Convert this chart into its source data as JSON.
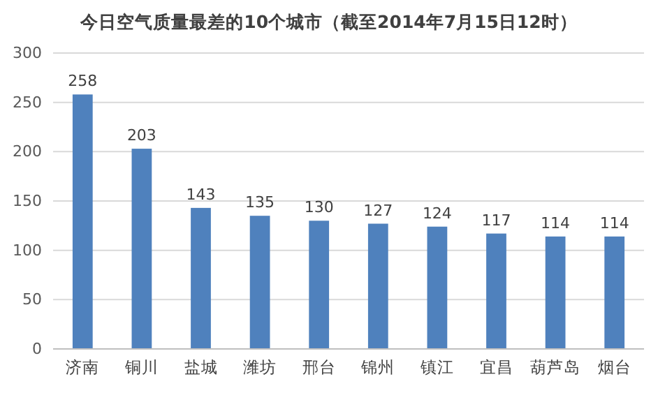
{
  "chart_data": {
    "type": "bar",
    "title": "今日空气质量最差的10个城市（截至2014年7月15日12时）",
    "categories": [
      "济南",
      "铜川",
      "盐城",
      "潍坊",
      "邢台",
      "锦州",
      "镇江",
      "宜昌",
      "葫芦岛",
      "烟台"
    ],
    "values": [
      258,
      203,
      143,
      135,
      130,
      127,
      124,
      117,
      114,
      114
    ],
    "color": "#4f81bd",
    "ylim": [
      0,
      300
    ],
    "yticks": [
      0,
      50,
      100,
      150,
      200,
      250,
      300
    ],
    "grid": "y",
    "data_labels": true
  }
}
